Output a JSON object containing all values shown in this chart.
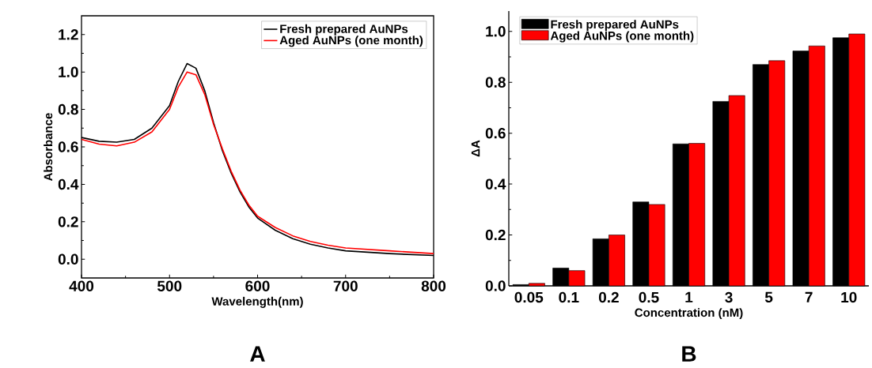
{
  "chart_data": [
    {
      "type": "line",
      "xlabel": "Wavelength(nm)",
      "ylabel": "Absorbance",
      "annotations": [
        "A"
      ],
      "legend": "top right",
      "xlim": [
        400,
        800
      ],
      "ylim": [
        -0.1,
        1.3
      ],
      "xticks": [
        400,
        500,
        600,
        700,
        800
      ],
      "yticks": [
        {
          "value": 0,
          "label": "0.0"
        },
        {
          "value": 0.2,
          "label": "0.2"
        },
        {
          "value": 0.4,
          "label": "0.4"
        },
        {
          "value": 0.6,
          "label": "0.6"
        },
        {
          "value": 0.8,
          "label": "0.8"
        },
        {
          "value": 1.0,
          "label": "1.0"
        },
        {
          "value": 1.2,
          "label": "1.2"
        }
      ],
      "series": [
        {
          "name": "Fresh prepared AuNPs",
          "color": "#000000",
          "x": [
            400,
            420,
            440,
            460,
            480,
            500,
            510,
            520,
            530,
            540,
            550,
            560,
            570,
            580,
            590,
            600,
            620,
            640,
            660,
            680,
            700,
            750,
            800
          ],
          "values": [
            0.65,
            0.63,
            0.625,
            0.64,
            0.7,
            0.82,
            0.95,
            1.045,
            1.02,
            0.9,
            0.73,
            0.58,
            0.46,
            0.36,
            0.28,
            0.22,
            0.155,
            0.11,
            0.08,
            0.06,
            0.045,
            0.03,
            0.02
          ]
        },
        {
          "name": "Aged AuNPs (one month)",
          "color": "#ff0000",
          "x": [
            400,
            420,
            440,
            460,
            480,
            500,
            510,
            520,
            530,
            540,
            550,
            560,
            570,
            580,
            590,
            600,
            620,
            640,
            660,
            680,
            700,
            750,
            800
          ],
          "values": [
            0.64,
            0.615,
            0.605,
            0.625,
            0.68,
            0.8,
            0.92,
            1.0,
            0.985,
            0.88,
            0.72,
            0.59,
            0.47,
            0.37,
            0.29,
            0.23,
            0.17,
            0.125,
            0.095,
            0.075,
            0.06,
            0.045,
            0.03
          ]
        }
      ]
    },
    {
      "type": "bar",
      "xlabel": "Concentration (nM)",
      "ylabel": "ΔA",
      "annotations": [
        "B"
      ],
      "legend": "top left",
      "categories": [
        "0.05",
        "0.1",
        "0.2",
        "0.5",
        "1",
        "3",
        "5",
        "7",
        "10"
      ],
      "ylim": [
        0,
        1.08
      ],
      "yticks": [
        {
          "value": 0,
          "label": "0.0"
        },
        {
          "value": 0.2,
          "label": "0.2"
        },
        {
          "value": 0.4,
          "label": "0.4"
        },
        {
          "value": 0.6,
          "label": "0.6"
        },
        {
          "value": 0.8,
          "label": "0.8"
        },
        {
          "value": 1.0,
          "label": "1.0"
        }
      ],
      "series": [
        {
          "name": "Fresh prepared AuNPs",
          "color": "#000000",
          "values": [
            0.005,
            0.07,
            0.185,
            0.33,
            0.558,
            0.725,
            0.87,
            0.923,
            0.975
          ]
        },
        {
          "name": "Aged AuNPs (one month)",
          "color": "#ff0000",
          "values": [
            0.01,
            0.06,
            0.2,
            0.32,
            0.56,
            0.748,
            0.885,
            0.943,
            0.99
          ]
        }
      ]
    }
  ]
}
